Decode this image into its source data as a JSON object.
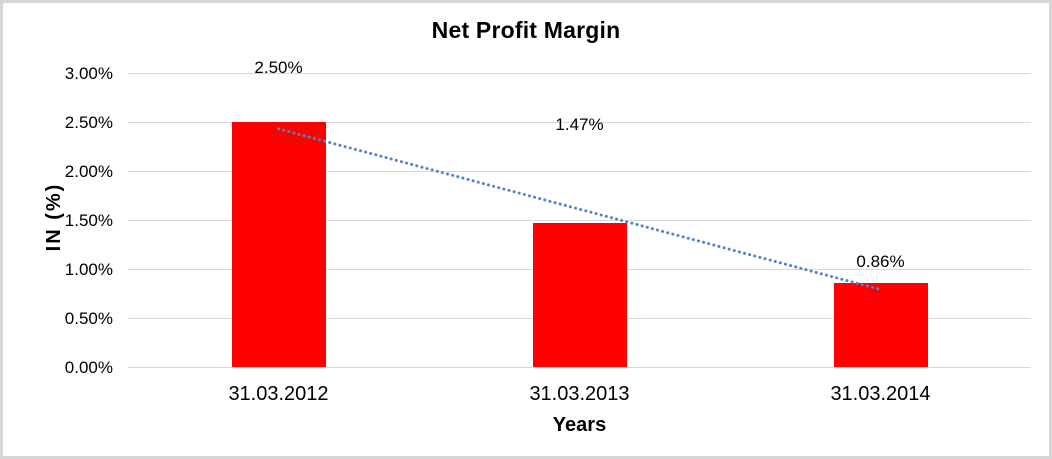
{
  "chart_data": {
    "type": "bar",
    "title": "Net Profit Margin",
    "xlabel": "Years",
    "ylabel": "IN (%)",
    "categories": [
      "31.03.2012",
      "31.03.2013",
      "31.03.2014"
    ],
    "values": [
      2.5,
      1.47,
      0.86
    ],
    "data_labels": [
      "2.50%",
      "1.47%",
      "0.86%"
    ],
    "ytick_labels": [
      "3.00%",
      "2.50%",
      "2.00%",
      "1.50%",
      "1.00%",
      "0.50%",
      "0.00%"
    ],
    "ytick_values": [
      3.0,
      2.5,
      2.0,
      1.5,
      1.0,
      0.5,
      0.0
    ],
    "ylim": [
      0,
      3.0
    ],
    "grid": true,
    "legend": "none",
    "bar_color": "#FF0000",
    "gridline_color": "#D9D9D9",
    "trendline": {
      "type": "linear",
      "style": "dotted",
      "color": "#4E86C8"
    }
  }
}
